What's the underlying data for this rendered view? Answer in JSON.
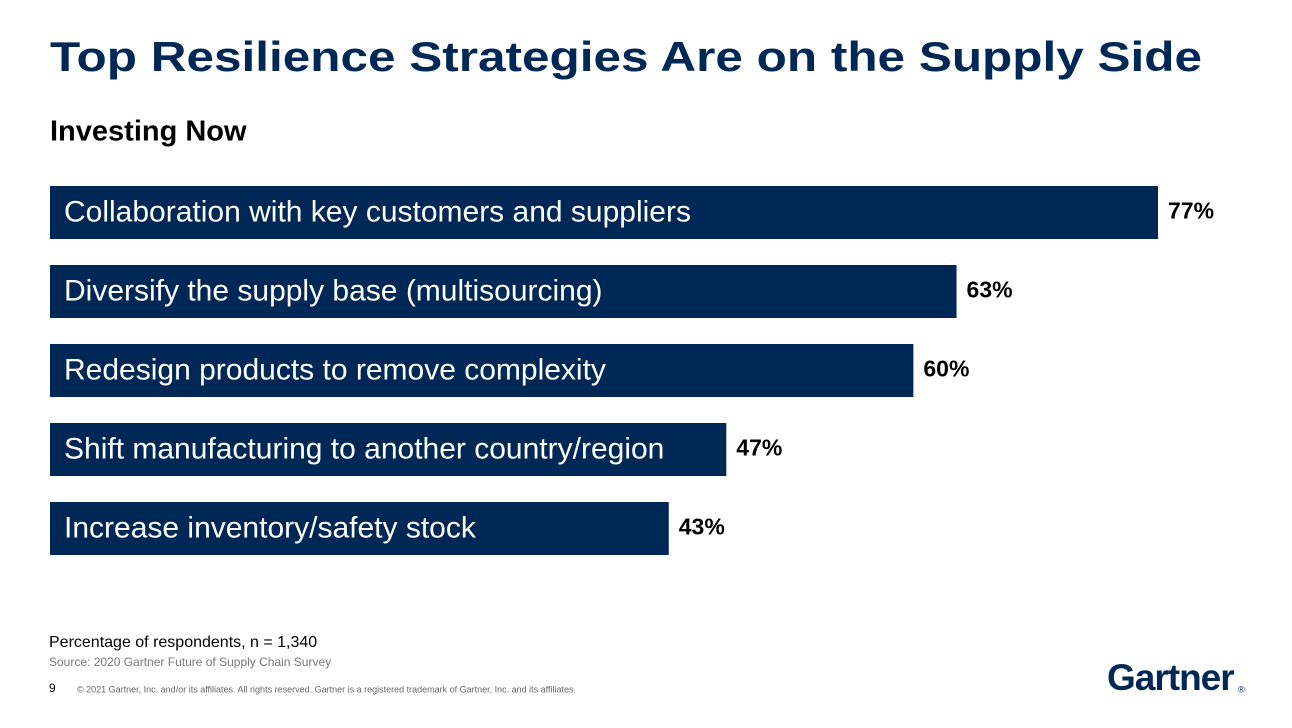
{
  "chart_data": {
    "type": "bar",
    "orientation": "horizontal",
    "title": "Top Resilience Strategies Are on the Supply Side",
    "subtitle": "Investing Now",
    "categories": [
      "Collaboration with key customers and suppliers",
      "Diversify the supply base (multisourcing)",
      "Redesign products to remove complexity",
      "Shift manufacturing to another country/region",
      "Increase inventory/safety stock"
    ],
    "values": [
      77,
      63,
      60,
      47,
      43
    ],
    "value_labels": [
      "77%",
      "63%",
      "60%",
      "47%",
      "43%"
    ],
    "color": "#002856",
    "note": "Percentage of respondents, n = 1,340",
    "source": "Source: 2020 Gartner Future of Supply Chain Survey",
    "page_number": "9",
    "copyright": "© 2021 Gartner, Inc. and/or its affiliates. All rights reserved. Gartner is a registered trademark of Gartner, Inc. and its affiliates.",
    "logo": "Gartner",
    "logo_mark": "®"
  }
}
